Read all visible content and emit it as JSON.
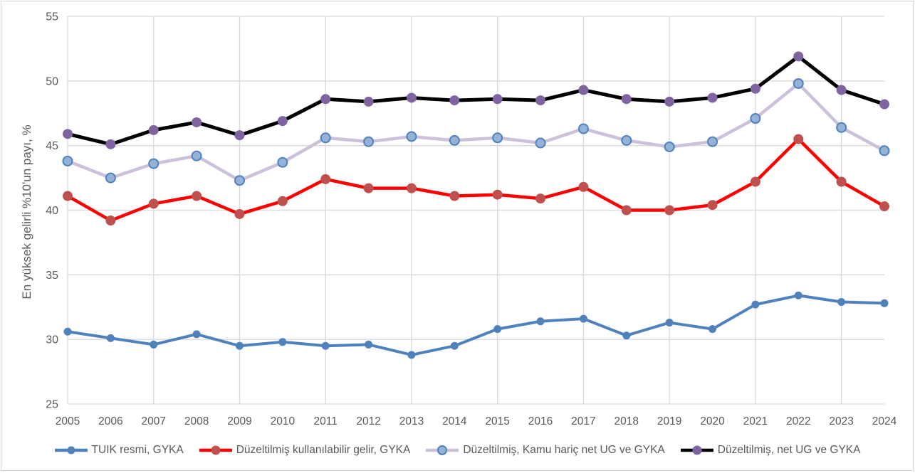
{
  "chart_data": {
    "type": "line",
    "title": "",
    "xlabel": "",
    "ylabel": "En yüksek gelirli %10'un payı, %",
    "ylim": [
      25,
      55
    ],
    "ytick_step": 5,
    "grid": true,
    "legend_position": "bottom",
    "categories": [
      "2005",
      "2006",
      "2007",
      "2008",
      "2009",
      "2010",
      "2011",
      "2012",
      "2013",
      "2014",
      "2015",
      "2016",
      "2017",
      "2018",
      "2019",
      "2020",
      "2021",
      "2022",
      "2023",
      "2024"
    ],
    "series": [
      {
        "name": "TUIK resmi, GYKA",
        "line_color": "#4F81BD",
        "marker_color": "#4F81BD",
        "marker_stroke": "#4F81BD",
        "values": [
          30.6,
          30.1,
          29.6,
          30.4,
          29.5,
          29.8,
          29.5,
          29.6,
          28.8,
          29.5,
          30.8,
          31.4,
          31.6,
          30.3,
          31.3,
          30.8,
          32.7,
          33.4,
          32.9,
          32.8
        ]
      },
      {
        "name": "Düzeltilmiş kullanılabilir gelir, GYKA",
        "line_color": "#FF0000",
        "marker_color": "#C0504D",
        "marker_stroke": "#C0504D",
        "values": [
          41.1,
          39.2,
          40.5,
          41.1,
          39.7,
          40.7,
          42.4,
          41.7,
          41.7,
          41.1,
          41.2,
          40.9,
          41.8,
          40.0,
          40.0,
          40.4,
          42.2,
          45.5,
          42.2,
          40.3
        ]
      },
      {
        "name": "Düzeltilmiş, Kamu hariç net UG ve GYKA",
        "line_color": "#CCC0DA",
        "marker_color": "#95B3D7",
        "marker_stroke": "#4F81BD",
        "values": [
          43.8,
          42.5,
          43.6,
          44.2,
          42.3,
          43.7,
          45.6,
          45.3,
          45.7,
          45.4,
          45.6,
          45.2,
          46.3,
          45.4,
          44.9,
          45.3,
          47.1,
          49.8,
          46.4,
          44.6
        ]
      },
      {
        "name": "Düzeltilmiş, net UG ve GYKA",
        "line_color": "#000000",
        "marker_color": "#8064A2",
        "marker_stroke": "#8064A2",
        "values": [
          45.9,
          45.1,
          46.2,
          46.8,
          45.8,
          46.9,
          48.6,
          48.4,
          48.7,
          48.5,
          48.6,
          48.5,
          49.3,
          48.6,
          48.4,
          48.7,
          49.4,
          51.9,
          49.3,
          48.2
        ]
      }
    ],
    "colors": {
      "gridline": "#D9D9D9",
      "axis_text": "#595959",
      "chart_border": "#D3D3D3",
      "background": "#FFFFFF"
    }
  }
}
